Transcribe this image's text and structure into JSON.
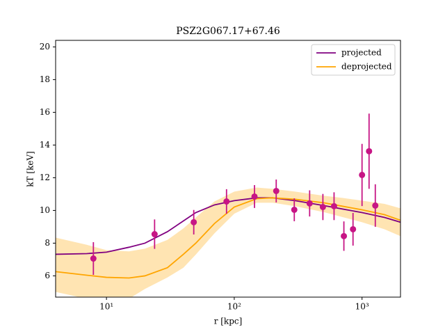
{
  "chart_data": {
    "type": "line",
    "title": "PSZ2G067.17+67.46",
    "x_label": "r [kpc]",
    "y_label": "kT [keV]",
    "xscale": "log",
    "xlim": [
      4,
      2000
    ],
    "ylim": [
      4.7,
      20.4
    ],
    "xticks": [
      {
        "value": 10,
        "label": "10¹"
      },
      {
        "value": 100,
        "label": "10²"
      },
      {
        "value": 1000,
        "label": "10³"
      }
    ],
    "yticks": [
      6,
      8,
      10,
      12,
      14,
      16,
      18,
      20
    ],
    "legend": "upper right",
    "x": [
      4,
      7,
      10,
      15,
      20,
      30,
      40,
      50,
      70,
      100,
      150,
      200,
      300,
      500,
      700,
      1000,
      1500,
      2000
    ],
    "series": [
      {
        "name": "projected",
        "color": "#800080",
        "values": [
          7.32,
          7.36,
          7.45,
          7.75,
          8.0,
          8.7,
          9.36,
          9.87,
          10.34,
          10.6,
          10.77,
          10.77,
          10.6,
          10.3,
          10.09,
          9.87,
          9.57,
          9.28
        ]
      },
      {
        "name": "deprojected",
        "color": "#ffa500",
        "values": [
          6.26,
          6.04,
          5.91,
          5.87,
          6.0,
          6.5,
          7.32,
          8.0,
          9.2,
          10.21,
          10.72,
          10.77,
          10.68,
          10.47,
          10.26,
          10.04,
          9.74,
          9.4
        ],
        "band_lower": [
          5.02,
          4.6,
          4.3,
          4.6,
          5.2,
          5.9,
          6.5,
          7.3,
          8.6,
          9.8,
          10.47,
          10.47,
          10.26,
          9.9,
          9.6,
          9.28,
          8.85,
          8.43
        ],
        "band_upper": [
          8.34,
          7.9,
          7.57,
          7.5,
          7.66,
          8.2,
          8.9,
          9.57,
          10.55,
          11.15,
          11.4,
          11.32,
          11.15,
          10.9,
          10.77,
          10.6,
          10.4,
          10.13
        ]
      }
    ],
    "points": {
      "color": "#c71585",
      "x": [
        7.9,
        23.8,
        48.2,
        87,
        144,
        213,
        295,
        389,
        494,
        604,
        721,
        850,
        1000,
        1135,
        1270
      ],
      "values": [
        7.06,
        8.55,
        9.28,
        10.55,
        10.85,
        11.19,
        10.04,
        10.43,
        10.21,
        10.26,
        8.43,
        8.85,
        12.17,
        13.62,
        10.3
      ],
      "errors": [
        1.0,
        0.9,
        0.75,
        0.75,
        0.7,
        0.7,
        0.7,
        0.8,
        0.8,
        0.85,
        0.9,
        1.0,
        1.9,
        2.3,
        1.3
      ]
    }
  }
}
